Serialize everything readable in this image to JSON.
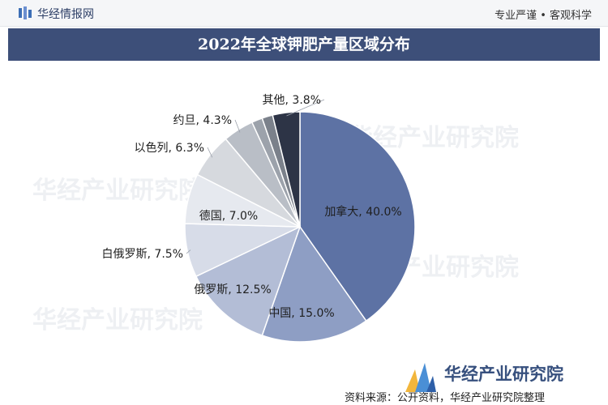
{
  "header": {
    "site_name": "华经情报网",
    "slogan": "专业严谨 • 客观科学"
  },
  "watermark": "华经产业研究院",
  "brand": {
    "name": "华经产业研究院"
  },
  "source": "资料来源：公开资料，华经产业研究院整理",
  "colors": {
    "title_band": "#3d4f79",
    "accent": "#5d72a4"
  },
  "chart_data": {
    "type": "pie",
    "title": "2022年全球钾肥产量区域分布",
    "slices": [
      {
        "label": "加拿大",
        "value": 40.0,
        "display": "加拿大, 40.0%",
        "color": "#5d72a4"
      },
      {
        "label": "中国",
        "value": 15.0,
        "display": "中国, 15.0%",
        "color": "#8e9ec4"
      },
      {
        "label": "俄罗斯",
        "value": 12.5,
        "display": "俄罗斯, 12.5%",
        "color": "#b3bdd6"
      },
      {
        "label": "白俄罗斯",
        "value": 7.5,
        "display": "白俄罗斯, 7.5%",
        "color": "#d7dce8"
      },
      {
        "label": "德国",
        "value": 7.0,
        "display": "德国, 7.0%",
        "color": "#e6e9ef"
      },
      {
        "label": "以色列",
        "value": 6.3,
        "display": "以色列, 6.3%",
        "color": "#d6d9de"
      },
      {
        "label": "约旦",
        "value": 4.3,
        "display": "约旦, 4.3%",
        "color": "#b9bec6"
      },
      {
        "label": "其他a",
        "value": 1.5,
        "display": "",
        "color": "#9ca2ab"
      },
      {
        "label": "其他b",
        "value": 1.5,
        "display": "",
        "color": "#7b818b"
      },
      {
        "label": "其他",
        "value": 3.8,
        "display": "其他, 3.8%",
        "color": "#2d3446"
      }
    ]
  }
}
